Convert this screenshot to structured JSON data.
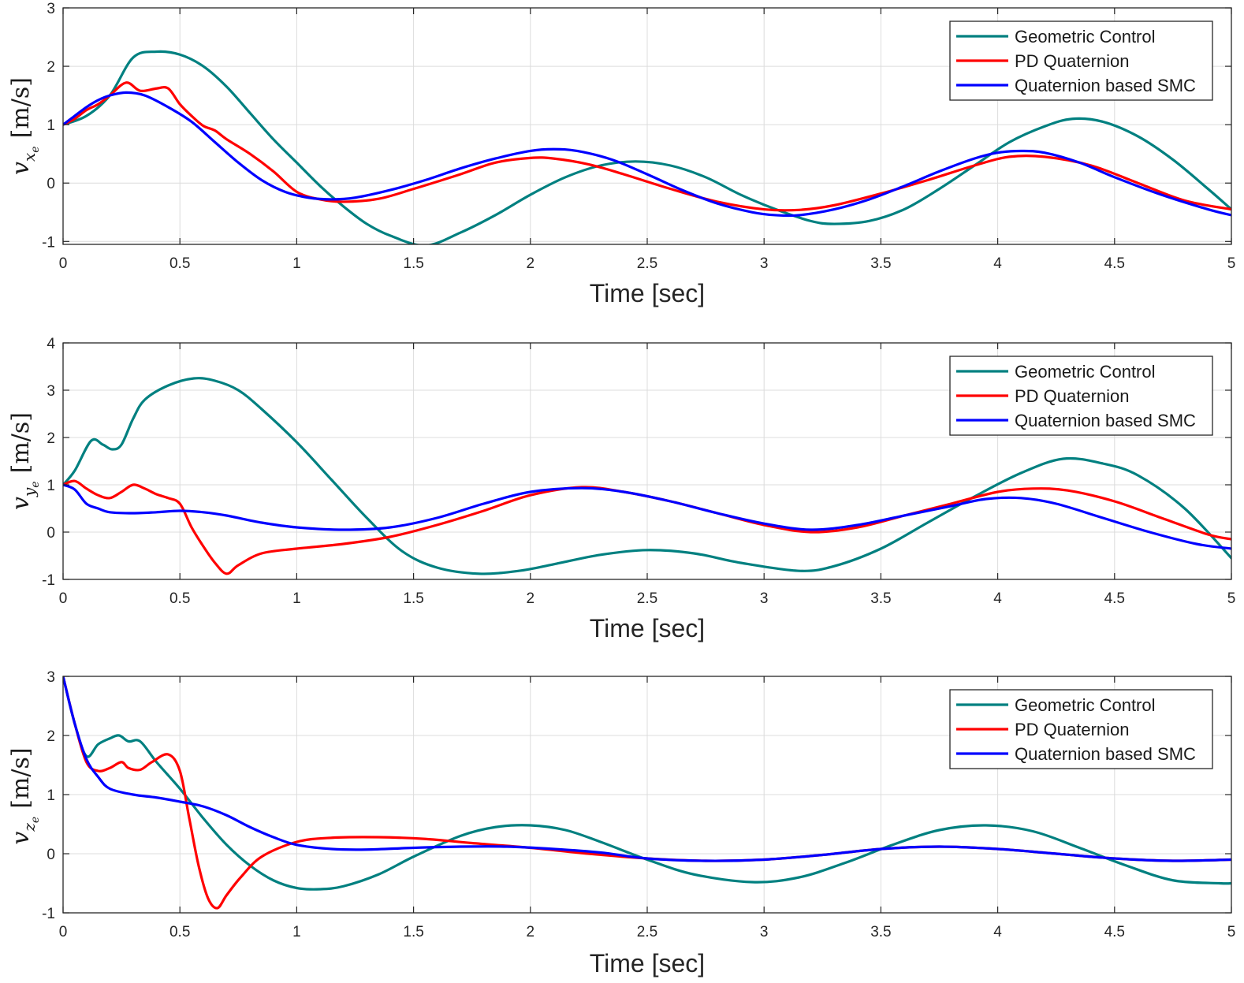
{
  "chart_data": [
    {
      "type": "line",
      "id": "vx",
      "xlabel": "Time [sec]",
      "ylabel": {
        "var": "v",
        "sub": "x",
        "subsub": "e",
        "unit": "[m/s]"
      },
      "xlim": [
        0,
        5
      ],
      "ylim": [
        -1.05,
        3
      ],
      "xticks": [
        0,
        0.5,
        1,
        1.5,
        2,
        2.5,
        3,
        3.5,
        4,
        4.5,
        5
      ],
      "xtick_labels": [
        "0",
        "0.5",
        "1",
        "1.5",
        "2",
        "2.5",
        "3",
        "3.5",
        "4",
        "4.5",
        "5"
      ],
      "yticks": [
        -1,
        0,
        1,
        2,
        3
      ],
      "ytick_labels": [
        "-1",
        "0",
        "1",
        "2",
        "3"
      ],
      "grid": true,
      "legend_position": "top-right",
      "series": [
        {
          "name": "Geometric Control",
          "color": "#008080",
          "x": [
            0,
            0.1,
            0.2,
            0.3,
            0.4,
            0.5,
            0.6,
            0.7,
            0.8,
            0.9,
            1.0,
            1.1,
            1.2,
            1.3,
            1.4,
            1.55,
            1.7,
            1.85,
            2.0,
            2.15,
            2.3,
            2.45,
            2.6,
            2.75,
            2.9,
            3.05,
            3.2,
            3.3,
            3.45,
            3.6,
            3.75,
            3.9,
            4.05,
            4.2,
            4.32,
            4.45,
            4.6,
            4.75,
            4.9,
            5.0
          ],
          "y": [
            1.0,
            1.15,
            1.5,
            2.15,
            2.25,
            2.2,
            2.0,
            1.65,
            1.2,
            0.75,
            0.35,
            -0.05,
            -0.4,
            -0.7,
            -0.9,
            -1.07,
            -0.85,
            -0.55,
            -0.2,
            0.1,
            0.3,
            0.37,
            0.3,
            0.1,
            -0.2,
            -0.45,
            -0.65,
            -0.7,
            -0.65,
            -0.45,
            -0.1,
            0.3,
            0.7,
            0.97,
            1.1,
            1.05,
            0.8,
            0.4,
            -0.1,
            -0.45
          ]
        },
        {
          "name": "PD Quaternion",
          "color": "#ff0000",
          "x": [
            0,
            0.05,
            0.1,
            0.15,
            0.2,
            0.27,
            0.33,
            0.4,
            0.45,
            0.5,
            0.55,
            0.6,
            0.65,
            0.7,
            0.8,
            0.9,
            1.0,
            1.1,
            1.2,
            1.35,
            1.5,
            1.7,
            1.85,
            2.0,
            2.1,
            2.25,
            2.4,
            2.6,
            2.8,
            3.0,
            3.15,
            3.3,
            3.5,
            3.7,
            3.9,
            4.05,
            4.2,
            4.4,
            4.6,
            4.8,
            5.0
          ],
          "y": [
            1.0,
            1.1,
            1.25,
            1.35,
            1.5,
            1.72,
            1.58,
            1.62,
            1.62,
            1.35,
            1.15,
            0.98,
            0.9,
            0.75,
            0.5,
            0.2,
            -0.15,
            -0.28,
            -0.32,
            -0.27,
            -0.1,
            0.15,
            0.35,
            0.43,
            0.42,
            0.32,
            0.15,
            -0.1,
            -0.32,
            -0.45,
            -0.46,
            -0.38,
            -0.18,
            0.05,
            0.3,
            0.45,
            0.45,
            0.3,
            0.0,
            -0.3,
            -0.45
          ]
        },
        {
          "name": "Quaternion based SMC",
          "color": "#0000ff",
          "x": [
            0,
            0.05,
            0.1,
            0.15,
            0.2,
            0.27,
            0.35,
            0.45,
            0.55,
            0.65,
            0.75,
            0.85,
            0.95,
            1.05,
            1.15,
            1.25,
            1.4,
            1.55,
            1.7,
            1.85,
            2.0,
            2.1,
            2.2,
            2.35,
            2.5,
            2.65,
            2.8,
            2.95,
            3.05,
            3.15,
            3.3,
            3.45,
            3.6,
            3.75,
            3.9,
            4.0,
            4.1,
            4.2,
            4.35,
            4.5,
            4.7,
            4.9,
            5.0
          ],
          "y": [
            1.0,
            1.15,
            1.3,
            1.42,
            1.5,
            1.55,
            1.5,
            1.3,
            1.05,
            0.7,
            0.35,
            0.05,
            -0.15,
            -0.25,
            -0.28,
            -0.25,
            -0.12,
            0.05,
            0.25,
            0.42,
            0.55,
            0.58,
            0.55,
            0.4,
            0.15,
            -0.12,
            -0.35,
            -0.5,
            -0.55,
            -0.55,
            -0.45,
            -0.28,
            -0.05,
            0.2,
            0.42,
            0.52,
            0.55,
            0.52,
            0.35,
            0.1,
            -0.2,
            -0.45,
            -0.55
          ]
        }
      ]
    },
    {
      "type": "line",
      "id": "vy",
      "xlabel": "Time [sec]",
      "ylabel": {
        "var": "v",
        "sub": "y",
        "subsub": "e",
        "unit": "[m/s]"
      },
      "xlim": [
        0,
        5
      ],
      "ylim": [
        -1,
        4
      ],
      "xticks": [
        0,
        0.5,
        1,
        1.5,
        2,
        2.5,
        3,
        3.5,
        4,
        4.5,
        5
      ],
      "xtick_labels": [
        "0",
        "0.5",
        "1",
        "1.5",
        "2",
        "2.5",
        "3",
        "3.5",
        "4",
        "4.5",
        "5"
      ],
      "yticks": [
        -1,
        0,
        1,
        2,
        3,
        4
      ],
      "ytick_labels": [
        "-1",
        "0",
        "1",
        "2",
        "3",
        "4"
      ],
      "grid": true,
      "legend_position": "top-right",
      "series": [
        {
          "name": "Geometric Control",
          "color": "#008080",
          "x": [
            0,
            0.05,
            0.12,
            0.17,
            0.21,
            0.25,
            0.3,
            0.35,
            0.45,
            0.56,
            0.65,
            0.75,
            0.85,
            1.0,
            1.15,
            1.3,
            1.45,
            1.6,
            1.78,
            1.95,
            2.1,
            2.3,
            2.5,
            2.7,
            2.9,
            3.15,
            3.3,
            3.5,
            3.7,
            3.9,
            4.1,
            4.28,
            4.45,
            4.6,
            4.8,
            5.0
          ],
          "y": [
            1.0,
            1.3,
            1.93,
            1.85,
            1.75,
            1.85,
            2.4,
            2.8,
            3.1,
            3.25,
            3.2,
            3.0,
            2.6,
            1.9,
            1.1,
            0.3,
            -0.4,
            -0.75,
            -0.88,
            -0.82,
            -0.68,
            -0.48,
            -0.38,
            -0.45,
            -0.65,
            -0.82,
            -0.72,
            -0.35,
            0.2,
            0.75,
            1.25,
            1.55,
            1.45,
            1.2,
            0.5,
            -0.55
          ]
        },
        {
          "name": "PD Quaternion",
          "color": "#ff0000",
          "x": [
            0,
            0.05,
            0.1,
            0.15,
            0.2,
            0.25,
            0.3,
            0.35,
            0.4,
            0.45,
            0.5,
            0.55,
            0.6,
            0.65,
            0.7,
            0.75,
            0.85,
            1.0,
            1.2,
            1.4,
            1.6,
            1.8,
            2.0,
            2.22,
            2.4,
            2.6,
            2.8,
            3.0,
            3.2,
            3.4,
            3.6,
            3.8,
            4.0,
            4.15,
            4.3,
            4.5,
            4.7,
            4.9,
            5.0
          ],
          "y": [
            1.0,
            1.08,
            0.92,
            0.78,
            0.72,
            0.85,
            1.0,
            0.92,
            0.8,
            0.72,
            0.6,
            0.1,
            -0.3,
            -0.65,
            -0.88,
            -0.7,
            -0.45,
            -0.35,
            -0.25,
            -0.1,
            0.15,
            0.45,
            0.78,
            0.95,
            0.85,
            0.65,
            0.4,
            0.15,
            0.0,
            0.1,
            0.35,
            0.6,
            0.85,
            0.92,
            0.88,
            0.65,
            0.3,
            -0.05,
            -0.15
          ]
        },
        {
          "name": "Quaternion based SMC",
          "color": "#0000ff",
          "x": [
            0,
            0.05,
            0.1,
            0.15,
            0.2,
            0.3,
            0.4,
            0.5,
            0.6,
            0.7,
            0.85,
            1.0,
            1.2,
            1.4,
            1.6,
            1.8,
            2.0,
            2.22,
            2.4,
            2.6,
            2.8,
            3.0,
            3.2,
            3.4,
            3.6,
            3.8,
            3.95,
            4.1,
            4.25,
            4.45,
            4.65,
            4.85,
            5.0
          ],
          "y": [
            1.0,
            0.9,
            0.6,
            0.5,
            0.42,
            0.4,
            0.42,
            0.45,
            0.42,
            0.35,
            0.2,
            0.1,
            0.05,
            0.1,
            0.3,
            0.6,
            0.85,
            0.93,
            0.85,
            0.65,
            0.4,
            0.18,
            0.05,
            0.15,
            0.35,
            0.55,
            0.7,
            0.72,
            0.6,
            0.3,
            0.0,
            -0.25,
            -0.35
          ]
        }
      ]
    },
    {
      "type": "line",
      "id": "vz",
      "xlabel": "Time [sec]",
      "ylabel": {
        "var": "v",
        "sub": "z",
        "subsub": "e",
        "unit": "[m/s]"
      },
      "xlim": [
        0,
        5
      ],
      "ylim": [
        -1,
        3
      ],
      "xticks": [
        0,
        0.5,
        1,
        1.5,
        2,
        2.5,
        3,
        3.5,
        4,
        4.5,
        5
      ],
      "xtick_labels": [
        "0",
        "0.5",
        "1",
        "1.5",
        "2",
        "2.5",
        "3",
        "3.5",
        "4",
        "4.5",
        "5"
      ],
      "yticks": [
        -1,
        0,
        1,
        2,
        3
      ],
      "ytick_labels": [
        "-1",
        "0",
        "1",
        "2",
        "3"
      ],
      "grid": true,
      "legend_position": "top-right",
      "series": [
        {
          "name": "Geometric Control",
          "color": "#008080",
          "x": [
            0,
            0.05,
            0.1,
            0.15,
            0.2,
            0.24,
            0.28,
            0.33,
            0.4,
            0.5,
            0.6,
            0.7,
            0.8,
            0.9,
            1.0,
            1.1,
            1.2,
            1.35,
            1.5,
            1.7,
            1.85,
            2.0,
            2.15,
            2.3,
            2.5,
            2.7,
            2.95,
            3.15,
            3.35,
            3.55,
            3.75,
            3.95,
            4.15,
            4.35,
            4.55,
            4.75,
            4.95,
            5.0
          ],
          "y": [
            3.0,
            2.2,
            1.65,
            1.85,
            1.95,
            2.0,
            1.9,
            1.9,
            1.55,
            1.1,
            0.6,
            0.15,
            -0.2,
            -0.45,
            -0.58,
            -0.6,
            -0.55,
            -0.35,
            -0.05,
            0.3,
            0.45,
            0.48,
            0.4,
            0.2,
            -0.1,
            -0.35,
            -0.48,
            -0.4,
            -0.15,
            0.15,
            0.4,
            0.48,
            0.38,
            0.1,
            -0.2,
            -0.45,
            -0.5,
            -0.5
          ]
        },
        {
          "name": "PD Quaternion",
          "color": "#ff0000",
          "x": [
            0,
            0.05,
            0.1,
            0.15,
            0.2,
            0.25,
            0.28,
            0.33,
            0.38,
            0.45,
            0.5,
            0.54,
            0.58,
            0.62,
            0.66,
            0.7,
            0.76,
            0.85,
            1.0,
            1.15,
            1.35,
            1.55,
            1.75,
            2.0,
            2.25,
            2.5,
            2.75,
            3.0,
            3.25,
            3.5,
            3.75,
            4.0,
            4.25,
            4.5,
            4.75,
            5.0
          ],
          "y": [
            3.0,
            2.2,
            1.55,
            1.4,
            1.45,
            1.55,
            1.45,
            1.42,
            1.55,
            1.68,
            1.4,
            0.6,
            -0.2,
            -0.75,
            -0.92,
            -0.7,
            -0.4,
            -0.05,
            0.2,
            0.27,
            0.28,
            0.25,
            0.18,
            0.1,
            0.0,
            -0.08,
            -0.12,
            -0.1,
            -0.02,
            0.08,
            0.12,
            0.08,
            0.0,
            -0.08,
            -0.12,
            -0.1
          ]
        },
        {
          "name": "Quaternion based SMC",
          "color": "#0000ff",
          "x": [
            0,
            0.05,
            0.1,
            0.15,
            0.2,
            0.3,
            0.4,
            0.5,
            0.6,
            0.7,
            0.8,
            0.9,
            1.0,
            1.15,
            1.3,
            1.5,
            1.7,
            1.9,
            2.1,
            2.3,
            2.5,
            2.75,
            3.0,
            3.25,
            3.5,
            3.75,
            4.0,
            4.25,
            4.5,
            4.75,
            5.0
          ],
          "y": [
            3.0,
            2.2,
            1.6,
            1.3,
            1.1,
            1.0,
            0.95,
            0.88,
            0.8,
            0.65,
            0.45,
            0.28,
            0.15,
            0.08,
            0.07,
            0.1,
            0.12,
            0.12,
            0.08,
            0.02,
            -0.08,
            -0.12,
            -0.1,
            -0.02,
            0.08,
            0.12,
            0.08,
            0.0,
            -0.08,
            -0.12,
            -0.1
          ]
        }
      ]
    }
  ]
}
